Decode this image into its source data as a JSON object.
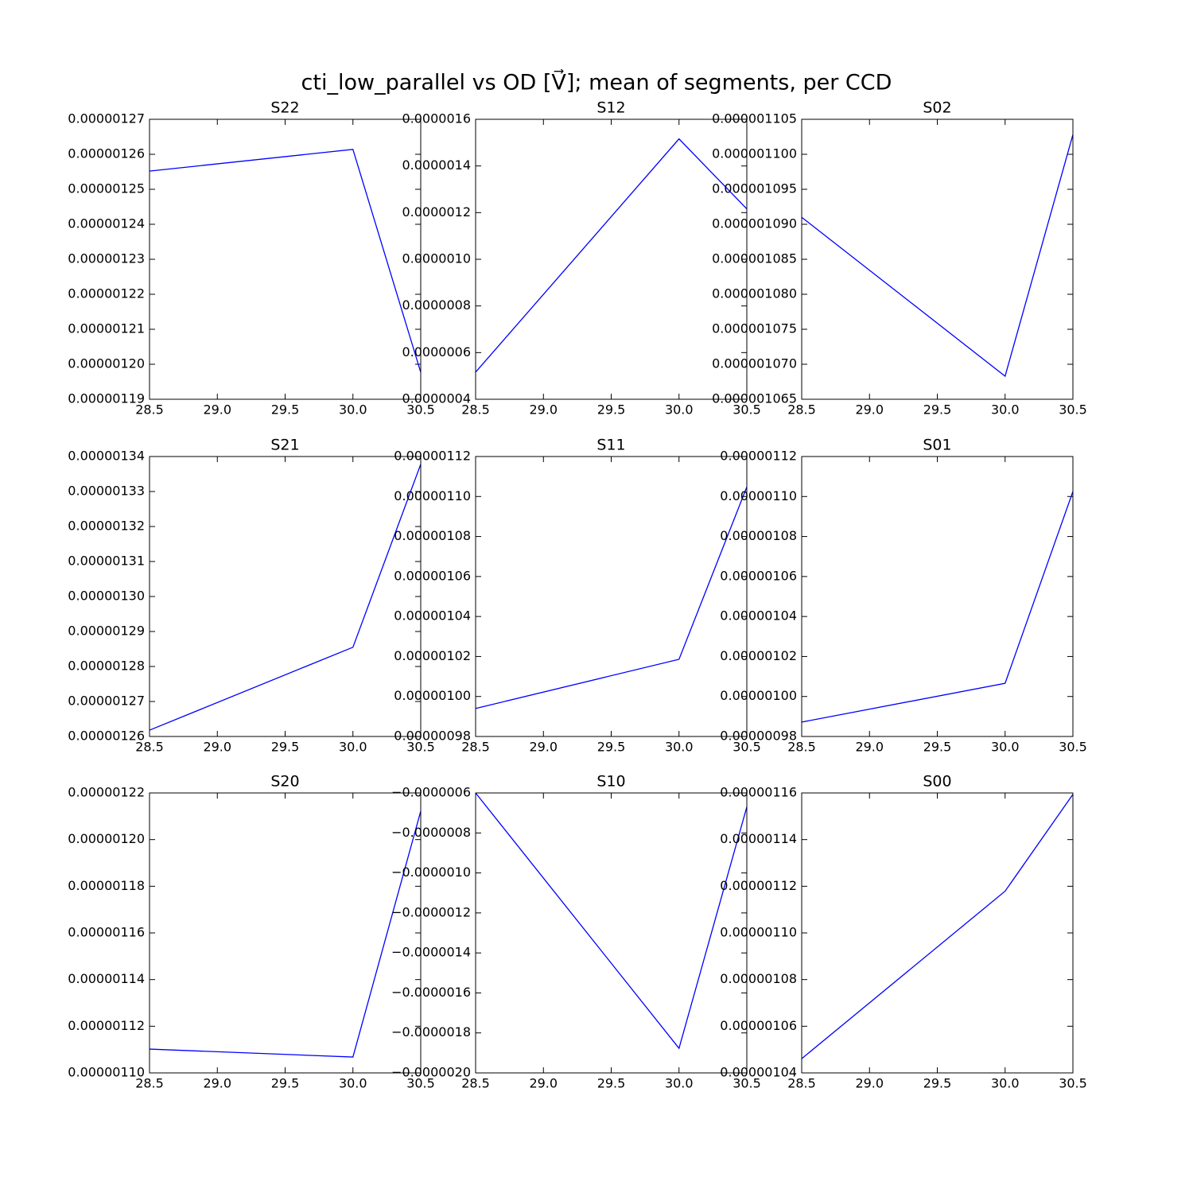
{
  "title": "cti_low_parallel vs OD [V⃗]; mean of segments, per CCD",
  "chart_data": [
    {
      "type": "line",
      "title": "S22",
      "x": [
        28.5,
        30.0,
        30.5
      ],
      "values": [
        1.2552e-06,
        1.2614e-06,
        1.1977e-06
      ],
      "color": "#0000ff",
      "xlim": [
        28.5,
        30.5
      ],
      "ylim": [
        1.19e-06,
        1.27e-06
      ],
      "xticks": [
        28.5,
        {
          "value": 29,
          "label": "29.0"
        },
        29.5,
        {
          "value": 30,
          "label": "30.0"
        },
        30.5
      ],
      "yticks": [
        {
          "value": 1.19e-06,
          "label": "0.00000119"
        },
        {
          "value": 1.2e-06,
          "label": "0.00000120"
        },
        {
          "value": 1.21e-06,
          "label": "0.00000121"
        },
        {
          "value": 1.22e-06,
          "label": "0.00000122"
        },
        {
          "value": 1.23e-06,
          "label": "0.00000123"
        },
        {
          "value": 1.24e-06,
          "label": "0.00000124"
        },
        {
          "value": 1.25e-06,
          "label": "0.00000125"
        },
        {
          "value": 1.26e-06,
          "label": "0.00000126"
        },
        {
          "value": 1.27e-06,
          "label": "0.00000127"
        }
      ]
    },
    {
      "type": "line",
      "title": "S12",
      "x": [
        28.5,
        30.0,
        30.5
      ],
      "values": [
        5.16e-07,
        1.516e-06,
        1.216e-06
      ],
      "color": "#0000ff",
      "xlim": [
        28.5,
        30.5
      ],
      "ylim": [
        4e-07,
        1.6e-06
      ],
      "xticks": [
        28.5,
        {
          "value": 29,
          "label": "29.0"
        },
        29.5,
        {
          "value": 30,
          "label": "30.0"
        },
        30.5
      ],
      "yticks": [
        {
          "value": 4e-07,
          "label": "0.0000004"
        },
        {
          "value": 6e-07,
          "label": "0.0000006"
        },
        {
          "value": 8e-07,
          "label": "0.0000008"
        },
        {
          "value": 1e-06,
          "label": "0.0000010"
        },
        {
          "value": 1.2e-06,
          "label": "0.0000012"
        },
        {
          "value": 1.4e-06,
          "label": "0.0000014"
        },
        {
          "value": 1.6e-06,
          "label": "0.0000016"
        }
      ]
    },
    {
      "type": "line",
      "title": "S02",
      "x": [
        28.5,
        30.0,
        30.5
      ],
      "values": [
        1.091e-06,
        1.0683e-06,
        1.1028e-06
      ],
      "color": "#0000ff",
      "xlim": [
        28.5,
        30.5
      ],
      "ylim": [
        1.065e-06,
        1.105e-06
      ],
      "xticks": [
        28.5,
        {
          "value": 29,
          "label": "29.0"
        },
        29.5,
        {
          "value": 30,
          "label": "30.0"
        },
        30.5
      ],
      "yticks": [
        {
          "value": 1.065e-06,
          "label": "0.000001065"
        },
        {
          "value": 1.07e-06,
          "label": "0.000001070"
        },
        {
          "value": 1.075e-06,
          "label": "0.000001075"
        },
        {
          "value": 1.08e-06,
          "label": "0.000001080"
        },
        {
          "value": 1.085e-06,
          "label": "0.000001085"
        },
        {
          "value": 1.09e-06,
          "label": "0.000001090"
        },
        {
          "value": 1.095e-06,
          "label": "0.000001095"
        },
        {
          "value": 1.1e-06,
          "label": "0.000001100"
        },
        {
          "value": 1.105e-06,
          "label": "0.000001105"
        }
      ]
    },
    {
      "type": "line",
      "title": "S21",
      "x": [
        28.5,
        30.0,
        30.5
      ],
      "values": [
        1.2618e-06,
        1.2855e-06,
        1.3378e-06
      ],
      "color": "#0000ff",
      "xlim": [
        28.5,
        30.5
      ],
      "ylim": [
        1.26e-06,
        1.34e-06
      ],
      "xticks": [
        28.5,
        {
          "value": 29,
          "label": "29.0"
        },
        29.5,
        {
          "value": 30,
          "label": "30.0"
        },
        30.5
      ],
      "yticks": [
        {
          "value": 1.26e-06,
          "label": "0.00000126"
        },
        {
          "value": 1.27e-06,
          "label": "0.00000127"
        },
        {
          "value": 1.28e-06,
          "label": "0.00000128"
        },
        {
          "value": 1.29e-06,
          "label": "0.00000129"
        },
        {
          "value": 1.3e-06,
          "label": "0.00000130"
        },
        {
          "value": 1.31e-06,
          "label": "0.00000131"
        },
        {
          "value": 1.32e-06,
          "label": "0.00000132"
        },
        {
          "value": 1.33e-06,
          "label": "0.00000133"
        },
        {
          "value": 1.34e-06,
          "label": "0.00000134"
        }
      ]
    },
    {
      "type": "line",
      "title": "S11",
      "x": [
        28.5,
        30.0,
        30.5
      ],
      "values": [
        9.94e-07,
        1.0186e-06,
        1.1048e-06
      ],
      "color": "#0000ff",
      "xlim": [
        28.5,
        30.5
      ],
      "ylim": [
        9.8e-07,
        1.12e-06
      ],
      "xticks": [
        28.5,
        {
          "value": 29,
          "label": "29.0"
        },
        29.5,
        {
          "value": 30,
          "label": "30.0"
        },
        30.5
      ],
      "yticks": [
        {
          "value": 9.8e-07,
          "label": "0.00000098"
        },
        {
          "value": 1e-06,
          "label": "0.00000100"
        },
        {
          "value": 1.02e-06,
          "label": "0.00000102"
        },
        {
          "value": 1.04e-06,
          "label": "0.00000104"
        },
        {
          "value": 1.06e-06,
          "label": "0.00000106"
        },
        {
          "value": 1.08e-06,
          "label": "0.00000108"
        },
        {
          "value": 1.1e-06,
          "label": "0.00000110"
        },
        {
          "value": 1.12e-06,
          "label": "0.00000112"
        }
      ]
    },
    {
      "type": "line",
      "title": "S01",
      "x": [
        28.5,
        30.0,
        30.5
      ],
      "values": [
        9.872e-07,
        1.0066e-06,
        1.1025e-06
      ],
      "color": "#0000ff",
      "xlim": [
        28.5,
        30.5
      ],
      "ylim": [
        9.8e-07,
        1.12e-06
      ],
      "xticks": [
        28.5,
        {
          "value": 29,
          "label": "29.0"
        },
        29.5,
        {
          "value": 30,
          "label": "30.0"
        },
        30.5
      ],
      "yticks": [
        {
          "value": 9.8e-07,
          "label": "0.00000098"
        },
        {
          "value": 1e-06,
          "label": "0.00000100"
        },
        {
          "value": 1.02e-06,
          "label": "0.00000102"
        },
        {
          "value": 1.04e-06,
          "label": "0.00000104"
        },
        {
          "value": 1.06e-06,
          "label": "0.00000106"
        },
        {
          "value": 1.08e-06,
          "label": "0.00000108"
        },
        {
          "value": 1.1e-06,
          "label": "0.00000110"
        },
        {
          "value": 1.12e-06,
          "label": "0.00000112"
        }
      ]
    },
    {
      "type": "line",
      "title": "S20",
      "x": [
        28.5,
        30.0,
        30.5
      ],
      "values": [
        1.1102e-06,
        1.1068e-06,
        1.2122e-06
      ],
      "color": "#0000ff",
      "xlim": [
        28.5,
        30.5
      ],
      "ylim": [
        1.1e-06,
        1.22e-06
      ],
      "xticks": [
        28.5,
        {
          "value": 29,
          "label": "29.0"
        },
        29.5,
        {
          "value": 30,
          "label": "30.0"
        },
        30.5
      ],
      "yticks": [
        {
          "value": 1.1e-06,
          "label": "0.00000110"
        },
        {
          "value": 1.12e-06,
          "label": "0.00000112"
        },
        {
          "value": 1.14e-06,
          "label": "0.00000114"
        },
        {
          "value": 1.16e-06,
          "label": "0.00000116"
        },
        {
          "value": 1.18e-06,
          "label": "0.00000118"
        },
        {
          "value": 1.2e-06,
          "label": "0.00000120"
        },
        {
          "value": 1.22e-06,
          "label": "0.00000122"
        }
      ]
    },
    {
      "type": "line",
      "title": "S10",
      "x": [
        28.5,
        30.0,
        30.5
      ],
      "values": [
        -6e-07,
        -1.877e-06,
        -6.7e-07
      ],
      "color": "#0000ff",
      "xlim": [
        28.5,
        30.5
      ],
      "ylim": [
        -2e-06,
        -6e-07
      ],
      "xticks": [
        28.5,
        {
          "value": 29,
          "label": "29.0"
        },
        29.5,
        {
          "value": 30,
          "label": "30.0"
        },
        30.5
      ],
      "yticks": [
        {
          "value": -2e-06,
          "label": "−0.0000020"
        },
        {
          "value": -1.8e-06,
          "label": "−0.0000018"
        },
        {
          "value": -1.6e-06,
          "label": "−0.0000016"
        },
        {
          "value": -1.4e-06,
          "label": "−0.0000014"
        },
        {
          "value": -1.2e-06,
          "label": "−0.0000012"
        },
        {
          "value": -1e-06,
          "label": "−0.0000010"
        },
        {
          "value": -8e-07,
          "label": "−0.0000008"
        },
        {
          "value": -6e-07,
          "label": "−0.0000006"
        }
      ]
    },
    {
      "type": "line",
      "title": "S00",
      "x": [
        28.5,
        30.0,
        30.5
      ],
      "values": [
        1.0461e-06,
        1.1179e-06,
        1.1594e-06
      ],
      "color": "#0000ff",
      "xlim": [
        28.5,
        30.5
      ],
      "ylim": [
        1.04e-06,
        1.16e-06
      ],
      "xticks": [
        28.5,
        {
          "value": 29,
          "label": "29.0"
        },
        29.5,
        {
          "value": 30,
          "label": "30.0"
        },
        30.5
      ],
      "yticks": [
        {
          "value": 1.04e-06,
          "label": "0.00000104"
        },
        {
          "value": 1.06e-06,
          "label": "0.00000106"
        },
        {
          "value": 1.08e-06,
          "label": "0.00000108"
        },
        {
          "value": 1.1e-06,
          "label": "0.00000110"
        },
        {
          "value": 1.12e-06,
          "label": "0.00000112"
        },
        {
          "value": 1.14e-06,
          "label": "0.00000114"
        },
        {
          "value": 1.16e-06,
          "label": "0.00000116"
        }
      ]
    }
  ]
}
